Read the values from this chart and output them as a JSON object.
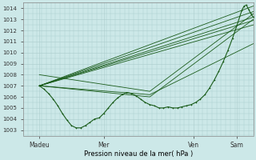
{
  "ylim": [
    1002.5,
    1014.5
  ],
  "xlim": [
    0.0,
    1.0
  ],
  "yticks": [
    1003,
    1004,
    1005,
    1006,
    1007,
    1008,
    1009,
    1010,
    1011,
    1012,
    1013,
    1014
  ],
  "xtick_positions": [
    0.07,
    0.35,
    0.74,
    0.93
  ],
  "xtick_labels": [
    "Madeu",
    "Mer",
    "Ven",
    "Sam"
  ],
  "xlabel": "Pression niveau de la mer( hPa )",
  "bg_color": "#cce8e8",
  "line_color": "#1a5c1a",
  "grid_color": "#aacccc",
  "fan_lines": [
    [
      [
        0.07,
        1007.0
      ],
      [
        1.0,
        1014.2
      ]
    ],
    [
      [
        0.07,
        1007.0
      ],
      [
        1.0,
        1013.7
      ]
    ],
    [
      [
        0.07,
        1007.0
      ],
      [
        1.0,
        1013.2
      ]
    ],
    [
      [
        0.07,
        1007.0
      ],
      [
        1.0,
        1012.9
      ]
    ],
    [
      [
        0.07,
        1007.0
      ],
      [
        1.0,
        1012.5
      ]
    ],
    [
      [
        0.07,
        1007.0
      ],
      [
        0.55,
        1006.2
      ],
      [
        1.0,
        1010.8
      ]
    ],
    [
      [
        0.07,
        1007.0
      ],
      [
        0.55,
        1006.0
      ],
      [
        1.0,
        1013.0
      ]
    ],
    [
      [
        0.07,
        1008.0
      ],
      [
        0.55,
        1006.5
      ],
      [
        1.0,
        1013.5
      ]
    ]
  ],
  "main_line": [
    [
      0.07,
      1007.0
    ],
    [
      0.09,
      1006.7
    ],
    [
      0.11,
      1006.3
    ],
    [
      0.13,
      1005.8
    ],
    [
      0.15,
      1005.2
    ],
    [
      0.17,
      1004.5
    ],
    [
      0.19,
      1003.9
    ],
    [
      0.21,
      1003.4
    ],
    [
      0.23,
      1003.2
    ],
    [
      0.25,
      1003.2
    ],
    [
      0.27,
      1003.4
    ],
    [
      0.29,
      1003.7
    ],
    [
      0.31,
      1004.0
    ],
    [
      0.33,
      1004.1
    ],
    [
      0.35,
      1004.5
    ],
    [
      0.37,
      1005.0
    ],
    [
      0.39,
      1005.5
    ],
    [
      0.41,
      1005.9
    ],
    [
      0.43,
      1006.2
    ],
    [
      0.45,
      1006.4
    ],
    [
      0.47,
      1006.3
    ],
    [
      0.49,
      1006.1
    ],
    [
      0.51,
      1005.8
    ],
    [
      0.53,
      1005.5
    ],
    [
      0.55,
      1005.3
    ],
    [
      0.57,
      1005.2
    ],
    [
      0.59,
      1005.0
    ],
    [
      0.61,
      1005.0
    ],
    [
      0.63,
      1005.1
    ],
    [
      0.65,
      1005.0
    ],
    [
      0.67,
      1005.0
    ],
    [
      0.69,
      1005.1
    ],
    [
      0.71,
      1005.2
    ],
    [
      0.73,
      1005.3
    ],
    [
      0.75,
      1005.5
    ],
    [
      0.77,
      1005.8
    ],
    [
      0.79,
      1006.2
    ],
    [
      0.81,
      1006.8
    ],
    [
      0.83,
      1007.5
    ],
    [
      0.85,
      1008.3
    ],
    [
      0.87,
      1009.2
    ],
    [
      0.89,
      1010.2
    ],
    [
      0.91,
      1011.3
    ],
    [
      0.93,
      1012.5
    ],
    [
      0.95,
      1013.8
    ],
    [
      0.96,
      1014.2
    ],
    [
      0.97,
      1014.3
    ],
    [
      0.98,
      1013.9
    ],
    [
      0.99,
      1013.5
    ],
    [
      1.0,
      1013.2
    ]
  ]
}
